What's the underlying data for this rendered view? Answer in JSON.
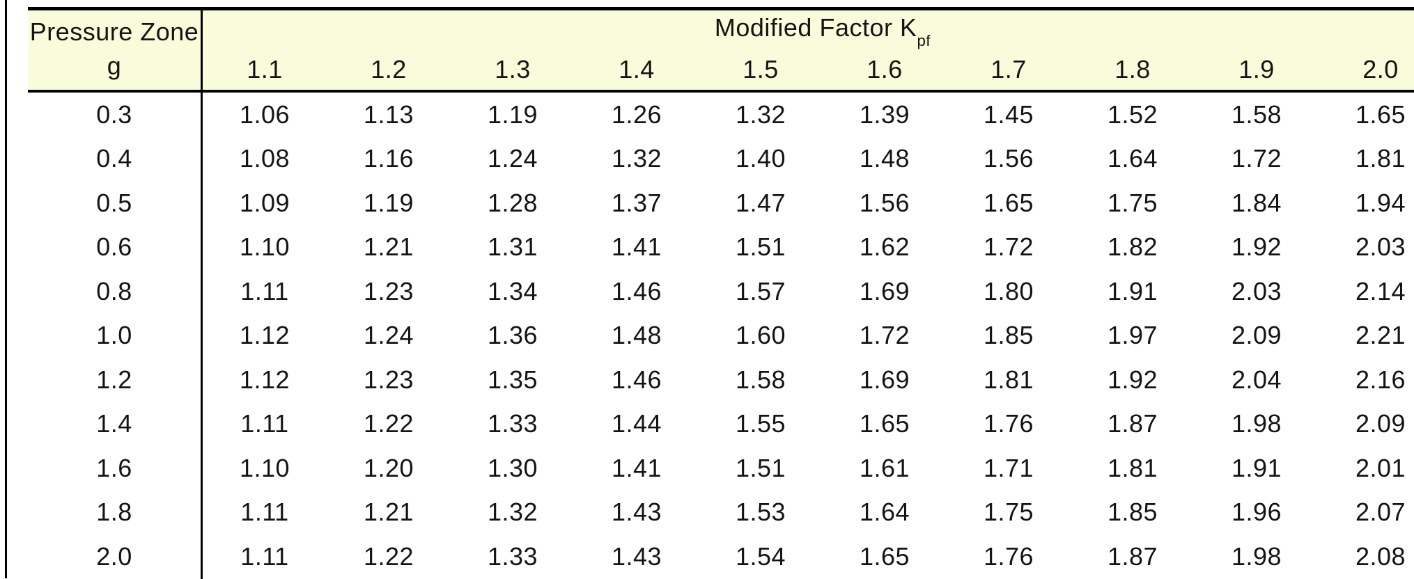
{
  "colors": {
    "header_bg": "#f9fcdb",
    "border": "#000000",
    "text": "#141414"
  },
  "table": {
    "row_header": {
      "line1": "Pressure Zone",
      "line2": "g"
    },
    "group_title": {
      "main": "Modified Factor K",
      "sub": "pf"
    },
    "column_headers": [
      "1.1",
      "1.2",
      "1.3",
      "1.4",
      "1.5",
      "1.6",
      "1.7",
      "1.8",
      "1.9",
      "2.0"
    ],
    "rows": [
      {
        "g": "0.3",
        "values": [
          "1.06",
          "1.13",
          "1.19",
          "1.26",
          "1.32",
          "1.39",
          "1.45",
          "1.52",
          "1.58",
          "1.65"
        ]
      },
      {
        "g": "0.4",
        "values": [
          "1.08",
          "1.16",
          "1.24",
          "1.32",
          "1.40",
          "1.48",
          "1.56",
          "1.64",
          "1.72",
          "1.81"
        ]
      },
      {
        "g": "0.5",
        "values": [
          "1.09",
          "1.19",
          "1.28",
          "1.37",
          "1.47",
          "1.56",
          "1.65",
          "1.75",
          "1.84",
          "1.94"
        ]
      },
      {
        "g": "0.6",
        "values": [
          "1.10",
          "1.21",
          "1.31",
          "1.41",
          "1.51",
          "1.62",
          "1.72",
          "1.82",
          "1.92",
          "2.03"
        ]
      },
      {
        "g": "0.8",
        "values": [
          "1.11",
          "1.23",
          "1.34",
          "1.46",
          "1.57",
          "1.69",
          "1.80",
          "1.91",
          "2.03",
          "2.14"
        ]
      },
      {
        "g": "1.0",
        "values": [
          "1.12",
          "1.24",
          "1.36",
          "1.48",
          "1.60",
          "1.72",
          "1.85",
          "1.97",
          "2.09",
          "2.21"
        ]
      },
      {
        "g": "1.2",
        "values": [
          "1.12",
          "1.23",
          "1.35",
          "1.46",
          "1.58",
          "1.69",
          "1.81",
          "1.92",
          "2.04",
          "2.16"
        ]
      },
      {
        "g": "1.4",
        "values": [
          "1.11",
          "1.22",
          "1.33",
          "1.44",
          "1.55",
          "1.65",
          "1.76",
          "1.87",
          "1.98",
          "2.09"
        ]
      },
      {
        "g": "1.6",
        "values": [
          "1.10",
          "1.20",
          "1.30",
          "1.41",
          "1.51",
          "1.61",
          "1.71",
          "1.81",
          "1.91",
          "2.01"
        ]
      },
      {
        "g": "1.8",
        "values": [
          "1.11",
          "1.21",
          "1.32",
          "1.43",
          "1.53",
          "1.64",
          "1.75",
          "1.85",
          "1.96",
          "2.07"
        ]
      },
      {
        "g": "2.0",
        "values": [
          "1.11",
          "1.22",
          "1.33",
          "1.43",
          "1.54",
          "1.65",
          "1.76",
          "1.87",
          "1.98",
          "2.08"
        ]
      }
    ]
  }
}
